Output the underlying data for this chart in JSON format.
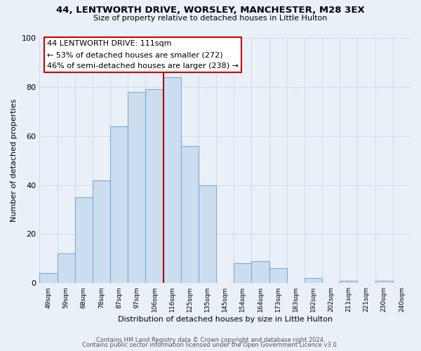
{
  "title1": "44, LENTWORTH DRIVE, WORSLEY, MANCHESTER, M28 3EX",
  "title2": "Size of property relative to detached houses in Little Hulton",
  "xlabel": "Distribution of detached houses by size in Little Hulton",
  "ylabel": "Number of detached properties",
  "bar_labels": [
    "49sqm",
    "59sqm",
    "68sqm",
    "78sqm",
    "87sqm",
    "97sqm",
    "106sqm",
    "116sqm",
    "125sqm",
    "135sqm",
    "145sqm",
    "154sqm",
    "164sqm",
    "173sqm",
    "183sqm",
    "192sqm",
    "202sqm",
    "211sqm",
    "221sqm",
    "230sqm",
    "240sqm"
  ],
  "bar_values": [
    4,
    12,
    35,
    42,
    64,
    78,
    79,
    84,
    56,
    40,
    0,
    8,
    9,
    6,
    0,
    2,
    0,
    1,
    0,
    1,
    0
  ],
  "bar_color": "#ccddf0",
  "bar_edge_color": "#7baad4",
  "grid_color": "#d0d8e8",
  "ylim": [
    0,
    100
  ],
  "yticks": [
    0,
    20,
    40,
    60,
    80,
    100
  ],
  "property_line_x": 7,
  "property_line_color": "#aa0000",
  "annotation_title": "44 LENTWORTH DRIVE: 111sqm",
  "annotation_line1": "← 53% of detached houses are smaller (272)",
  "annotation_line2": "46% of semi-detached houses are larger (238) →",
  "annotation_box_color": "#ffffff",
  "annotation_box_edge": "#cc0000",
  "footer1": "Contains HM Land Registry data © Crown copyright and database right 2024.",
  "footer2": "Contains public sector information licensed under the Open Government Licence v3.0.",
  "bg_color": "#eaf0f8"
}
